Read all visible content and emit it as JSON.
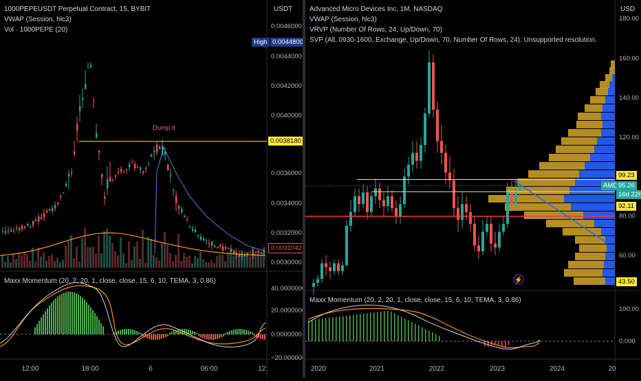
{
  "left_chart": {
    "title": "1000PEPEUSDT Perpetual Contract, 15, BYBIT",
    "indicators": [
      "VWAP (Session, hlc3)",
      "Vol · 1000PEPE (20)"
    ],
    "currency": "USDT",
    "y_ticks": [
      "0.0046000",
      "0.0044000",
      "0.0042000",
      "0.0040000",
      "0.0036000",
      "0.0034000",
      "0.0032000",
      "0.0030000"
    ],
    "high_label": "High",
    "high_value": "0.0044800",
    "line_value": "0.0038180",
    "last_value": "0.0031042",
    "annotation": "Dump it",
    "x_ticks": [
      "12:00",
      "18:00",
      "6",
      "06:00",
      "12:"
    ],
    "oscillator": {
      "title": "Maxx Momentum (20, 2, 20, 1, close, close, 15, 6, 10, TEMA, 3, 0.86)",
      "y_ticks": [
        "40.0000000",
        "20.0000000",
        "0.0000000",
        "−20.0000000"
      ]
    }
  },
  "right_chart": {
    "title": "Advanced Micro Devices Inc, 1M, NASDAQ",
    "indicators": [
      "VWAP (Session, hlc3)",
      "VRVP (Number Of Rows, 24, Up/Down, 70)",
      "SVP (All, 0930-1600, Exchange, Up/Down, 70, Number Of Rows, 24): Unsupported resolution."
    ],
    "currency": "USD",
    "top_tick": "180.00",
    "y_ticks": [
      "160.00",
      "140.00",
      "120.00",
      "80.00",
      "60.00"
    ],
    "price_tags": {
      "upper": "99.23",
      "symbol": "AMD",
      "last": "95.26",
      "countdown": "16d 22h",
      "lower": "92.11",
      "bottom": "43.50"
    },
    "x_ticks": [
      "2020",
      "2021",
      "2022",
      "2023",
      "2024",
      "20"
    ],
    "oscillator": {
      "title": "Maxx Momentum (20, 2, 20, 1, close, close, 15, 6, 10, TEMA, 3, 0.86)",
      "y_ticks": [
        "100.00",
        "0.000"
      ]
    }
  },
  "colors": {
    "up": "#26a69a",
    "down": "#ef5350",
    "vwap": "#2962ff",
    "orange": "#f7931a",
    "yellow": "#ffeb3b",
    "red_line": "#f23645",
    "vp_up": "#d4a62a",
    "vp_down": "#2962ff"
  }
}
